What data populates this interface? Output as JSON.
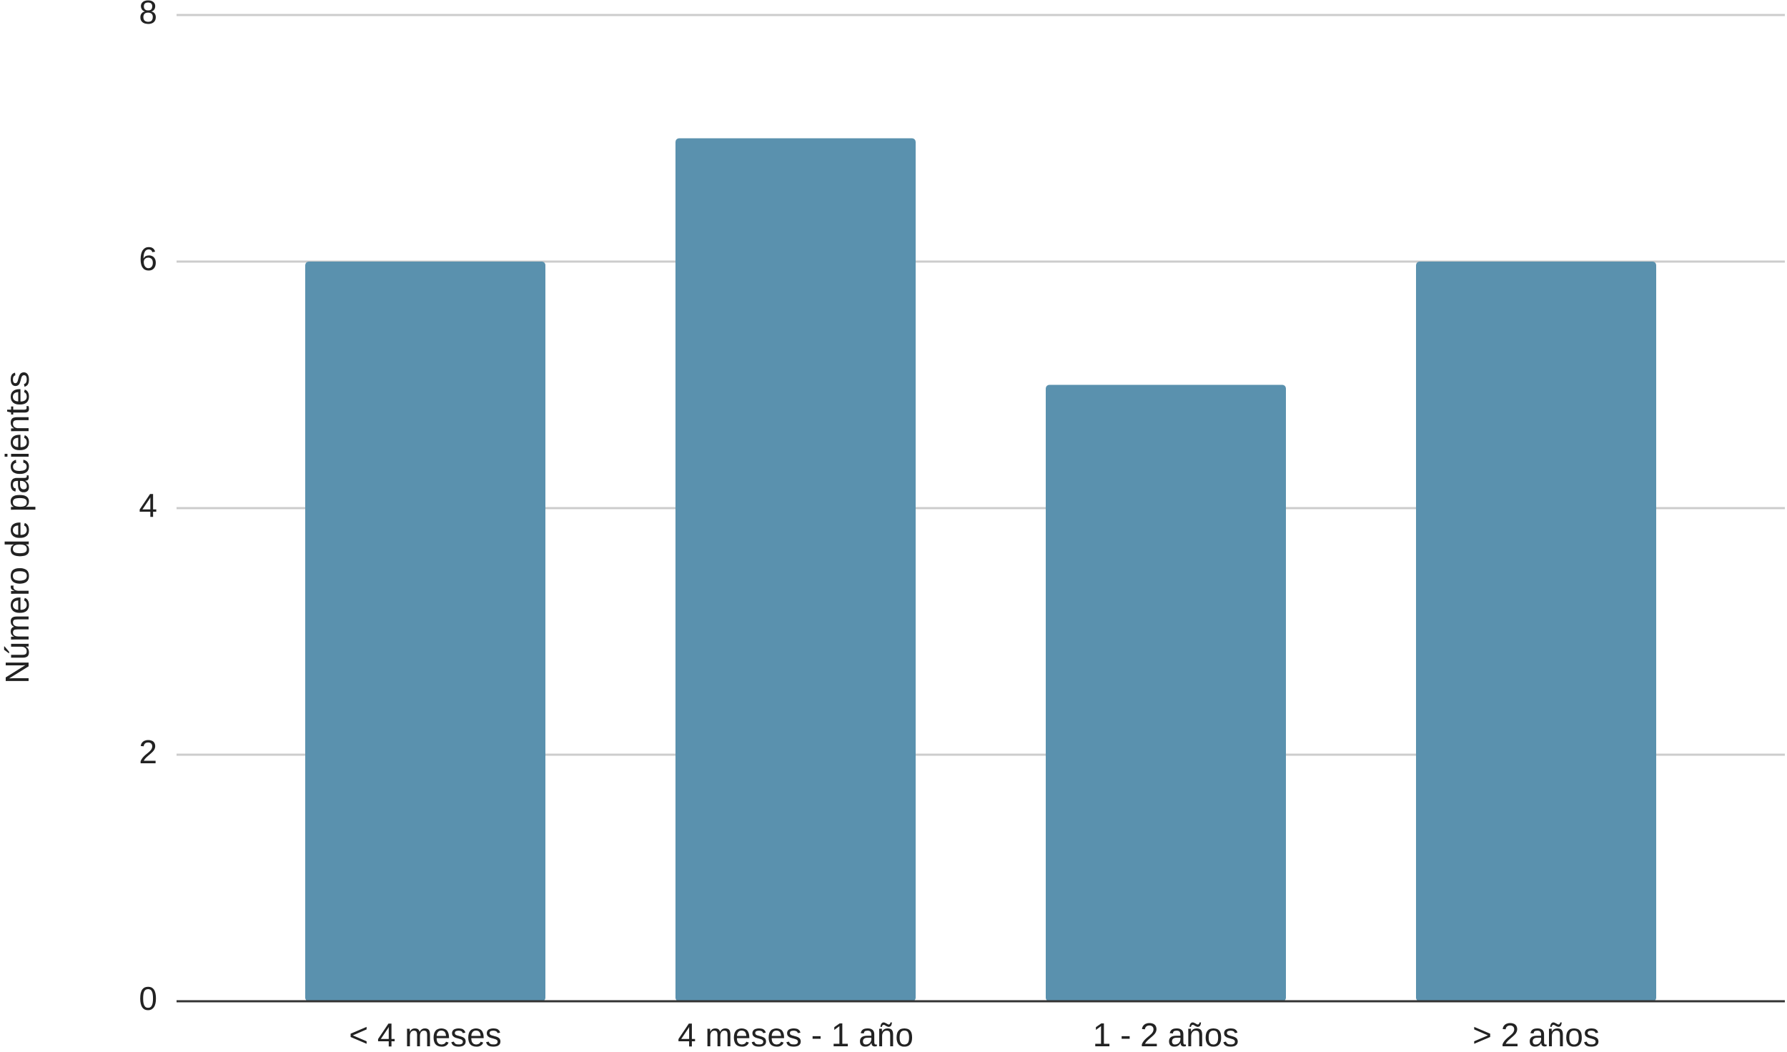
{
  "chart_data": {
    "type": "bar",
    "y_label": "Número de pacientes",
    "categories": [
      "< 4 meses",
      "4 meses - 1 año",
      "1 - 2 años",
      "> 2 años"
    ],
    "values": [
      6,
      7,
      5,
      6
    ],
    "color": "#5a91ae",
    "ylim": [
      0,
      8
    ],
    "yticks": [
      0,
      2,
      4,
      6,
      8
    ],
    "grid": true
  }
}
